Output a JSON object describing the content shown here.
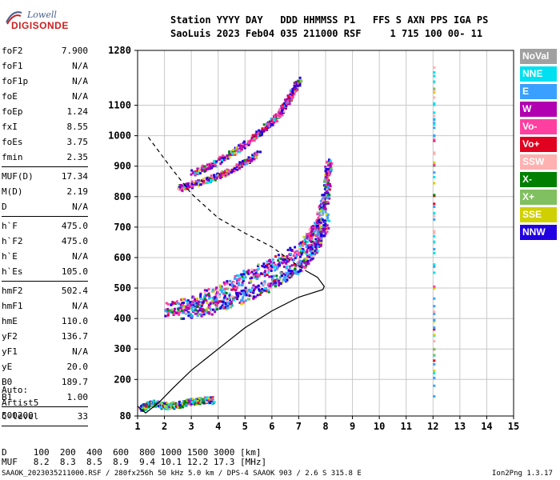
{
  "logo": {
    "brand": "Lowell",
    "name": "DIGISONDE"
  },
  "header": {
    "line1": "Station YYYY DAY   DDD HHMMSS P1   FFS S AXN PPS IGA PS",
    "line2": "SaoLuis 2023 Feb04 035 211000 RSF     1 715 100 00- 11"
  },
  "params_group1": [
    {
      "label": "foF2",
      "value": "7.900"
    },
    {
      "label": "foF1",
      "value": "N/A"
    },
    {
      "label": "foF1p",
      "value": "N/A"
    },
    {
      "label": "foE",
      "value": "N/A"
    },
    {
      "label": "foEp",
      "value": "1.24"
    },
    {
      "label": "fxI",
      "value": "8.55"
    },
    {
      "label": "foEs",
      "value": "3.75"
    },
    {
      "label": "fmin",
      "value": "2.35"
    }
  ],
  "params_group2": [
    {
      "label": "MUF(D)",
      "value": "17.34"
    },
    {
      "label": "M(D)",
      "value": "2.19"
    },
    {
      "label": "D",
      "value": "N/A"
    }
  ],
  "params_group3": [
    {
      "label": "h`F",
      "value": "475.0"
    },
    {
      "label": "h`F2",
      "value": "475.0"
    },
    {
      "label": "h`E",
      "value": "N/A"
    },
    {
      "label": "h`Es",
      "value": "105.0"
    }
  ],
  "params_group4": [
    {
      "label": "hmF2",
      "value": "502.4"
    },
    {
      "label": "hmF1",
      "value": "N/A"
    },
    {
      "label": "hmE",
      "value": "110.0"
    },
    {
      "label": "yF2",
      "value": "136.7"
    },
    {
      "label": "yF1",
      "value": "N/A"
    },
    {
      "label": "yE",
      "value": "20.0"
    },
    {
      "label": "B0",
      "value": "189.7"
    },
    {
      "label": "B1",
      "value": "1.00"
    }
  ],
  "params_group5": [
    {
      "label": "C-level",
      "value": "33"
    }
  ],
  "auto": {
    "line1": "Auto:",
    "line2": "Artist5",
    "line3": "500200"
  },
  "legend": [
    {
      "label": "NoVal",
      "color": "#a0a0a0"
    },
    {
      "label": "NNE",
      "color": "#00e0f0"
    },
    {
      "label": "E",
      "color": "#3aa0ff"
    },
    {
      "label": "W",
      "color": "#b000b0"
    },
    {
      "label": "Vo-",
      "color": "#ff40a0"
    },
    {
      "label": "Vo+",
      "color": "#e00020"
    },
    {
      "label": "SSW",
      "color": "#ffb0b0"
    },
    {
      "label": "X-",
      "color": "#008000"
    },
    {
      "label": "X+",
      "color": "#80c060"
    },
    {
      "label": "SSE",
      "color": "#d0d000"
    },
    {
      "label": "NNW",
      "color": "#2000e0"
    }
  ],
  "bottom": {
    "d_row": "D     100  200  400  600  800 1000 1500 3000 [km]",
    "muf_row": "MUF   8.2  8.3  8.5  8.9  9.4 10.1 12.2 17.3 [MHz]"
  },
  "footer": {
    "left": "SAAOK_2023035211000.RSF / 280fx256h 50 kHz 5.0 km / DPS-4 SAAOK 903 / 2.6 S 315.8 E",
    "right": "Ion2Png 1.3.17"
  },
  "chart_data": {
    "type": "scatter",
    "title": "",
    "xlabel": "",
    "ylabel": "",
    "xlim": [
      1,
      15
    ],
    "ylim": [
      80,
      1280
    ],
    "x_ticks": [
      1,
      2,
      3,
      4,
      5,
      6,
      7,
      8,
      9,
      10,
      11,
      12,
      13,
      14,
      15
    ],
    "y_ticks": [
      80,
      200,
      300,
      400,
      500,
      600,
      700,
      800,
      900,
      1000,
      1100,
      1280
    ],
    "grid": true,
    "profile_solid": [
      [
        1.0,
        112
      ],
      [
        1.3,
        90
      ],
      [
        1.8,
        125
      ],
      [
        2.3,
        170
      ],
      [
        3.0,
        230
      ],
      [
        4.0,
        300
      ],
      [
        5.0,
        370
      ],
      [
        6.0,
        425
      ],
      [
        7.0,
        470
      ],
      [
        7.9,
        495
      ],
      [
        7.95,
        505
      ],
      [
        7.7,
        535
      ],
      [
        7.3,
        555
      ]
    ],
    "profile_dashed": [
      [
        1.4,
        995
      ],
      [
        2.2,
        900
      ],
      [
        3.0,
        810
      ],
      [
        4.0,
        730
      ],
      [
        5.0,
        680
      ],
      [
        6.0,
        635
      ],
      [
        6.7,
        590
      ],
      [
        7.3,
        555
      ]
    ],
    "traces": [
      {
        "name": "F2 O-trace",
        "points": [
          [
            2.0,
            430
          ],
          [
            3.0,
            455
          ],
          [
            4.0,
            490
          ],
          [
            5.0,
            540
          ],
          [
            6.0,
            580
          ],
          [
            7.0,
            630
          ],
          [
            7.5,
            680
          ],
          [
            7.8,
            740
          ],
          [
            8.0,
            820
          ],
          [
            8.1,
            920
          ]
        ]
      },
      {
        "name": "F2 lower echo",
        "points": [
          [
            2.5,
            420
          ],
          [
            3.5,
            435
          ],
          [
            4.5,
            460
          ],
          [
            5.5,
            500
          ],
          [
            6.5,
            545
          ],
          [
            7.2,
            590
          ],
          [
            7.7,
            650
          ],
          [
            8.0,
            730
          ]
        ]
      },
      {
        "name": "Multiple hop 1",
        "points": [
          [
            3.0,
            880
          ],
          [
            4.0,
            920
          ],
          [
            5.0,
            975
          ],
          [
            5.8,
            1035
          ],
          [
            6.3,
            1080
          ],
          [
            6.7,
            1140
          ],
          [
            7.0,
            1190
          ]
        ]
      },
      {
        "name": "Multiple hop 2",
        "points": [
          [
            2.5,
            830
          ],
          [
            3.5,
            855
          ],
          [
            4.5,
            890
          ],
          [
            5.5,
            945
          ]
        ]
      },
      {
        "name": "Es trace",
        "points": [
          [
            1.1,
            110
          ],
          [
            1.5,
            125
          ],
          [
            2.0,
            115
          ],
          [
            2.5,
            120
          ],
          [
            3.0,
            130
          ],
          [
            3.5,
            135
          ],
          [
            3.8,
            135
          ]
        ]
      },
      {
        "name": "NNE column",
        "points": [
          [
            12.0,
            150
          ],
          [
            12.0,
            400
          ],
          [
            12.0,
            900
          ],
          [
            12.0,
            1250
          ]
        ]
      }
    ]
  }
}
